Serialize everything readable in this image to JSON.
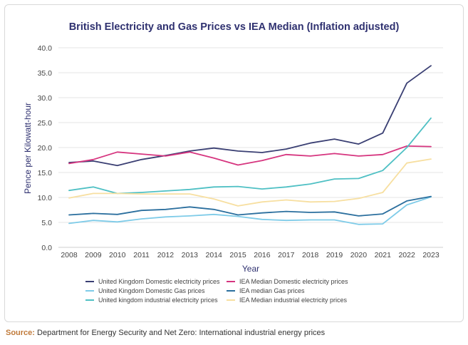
{
  "source": {
    "label": "Source:",
    "text": "Department for Energy Security and Net Zero: International industrial energy prices"
  },
  "chart_data": {
    "type": "line",
    "title": "British Electricity and Gas Prices vs IEA Median (Inflation adjusted)",
    "xlabel": "Year",
    "ylabel": "Pence per Kilowatt-hour",
    "ylim": [
      0,
      40
    ],
    "yticks": [
      "0.0",
      "5.0",
      "10.0",
      "15.0",
      "20.0",
      "25.0",
      "30.0",
      "35.0",
      "40.0"
    ],
    "grid": true,
    "legend_position": "bottom",
    "x": [
      2008,
      2009,
      2010,
      2011,
      2012,
      2013,
      2014,
      2015,
      2016,
      2017,
      2018,
      2019,
      2020,
      2021,
      2022,
      2023
    ],
    "series": [
      {
        "name": "United Kingdom Domestic electricity prices",
        "color": "#3a3f73",
        "values": [
          17.0,
          17.3,
          16.4,
          17.6,
          18.4,
          19.3,
          19.9,
          19.3,
          19.0,
          19.7,
          20.9,
          21.7,
          20.7,
          22.9,
          32.9,
          36.4
        ]
      },
      {
        "name": "IEA Median Domestic electricity prices",
        "color": "#d6357f",
        "values": [
          16.8,
          17.6,
          19.1,
          18.7,
          18.3,
          19.1,
          17.9,
          16.5,
          17.4,
          18.6,
          18.3,
          18.8,
          18.3,
          18.6,
          20.3,
          20.2
        ]
      },
      {
        "name": "United Kingdom Domestic Gas prices",
        "color": "#7ecbe8",
        "values": [
          4.8,
          5.4,
          5.1,
          5.7,
          6.1,
          6.3,
          6.6,
          6.2,
          5.6,
          5.4,
          5.5,
          5.5,
          4.6,
          4.7,
          8.5,
          10.1
        ]
      },
      {
        "name": "IEA median Gas prices",
        "color": "#2b6f9e",
        "values": [
          6.5,
          6.8,
          6.6,
          7.4,
          7.6,
          8.1,
          7.6,
          6.5,
          6.9,
          7.2,
          7.0,
          7.1,
          6.3,
          6.7,
          9.3,
          10.2
        ]
      },
      {
        "name": "United kingdom industrial electricity prices",
        "color": "#4fc0c4",
        "values": [
          11.4,
          12.1,
          10.8,
          11.0,
          11.3,
          11.6,
          12.1,
          12.2,
          11.7,
          12.1,
          12.7,
          13.7,
          13.8,
          15.4,
          20.0,
          25.9
        ]
      },
      {
        "name": "IEA Median industrial electricity prices",
        "color": "#f7dfa0",
        "values": [
          9.9,
          10.8,
          10.8,
          10.7,
          10.7,
          10.7,
          9.7,
          8.3,
          9.1,
          9.5,
          9.1,
          9.2,
          9.8,
          11.0,
          16.9,
          17.7
        ]
      }
    ]
  }
}
